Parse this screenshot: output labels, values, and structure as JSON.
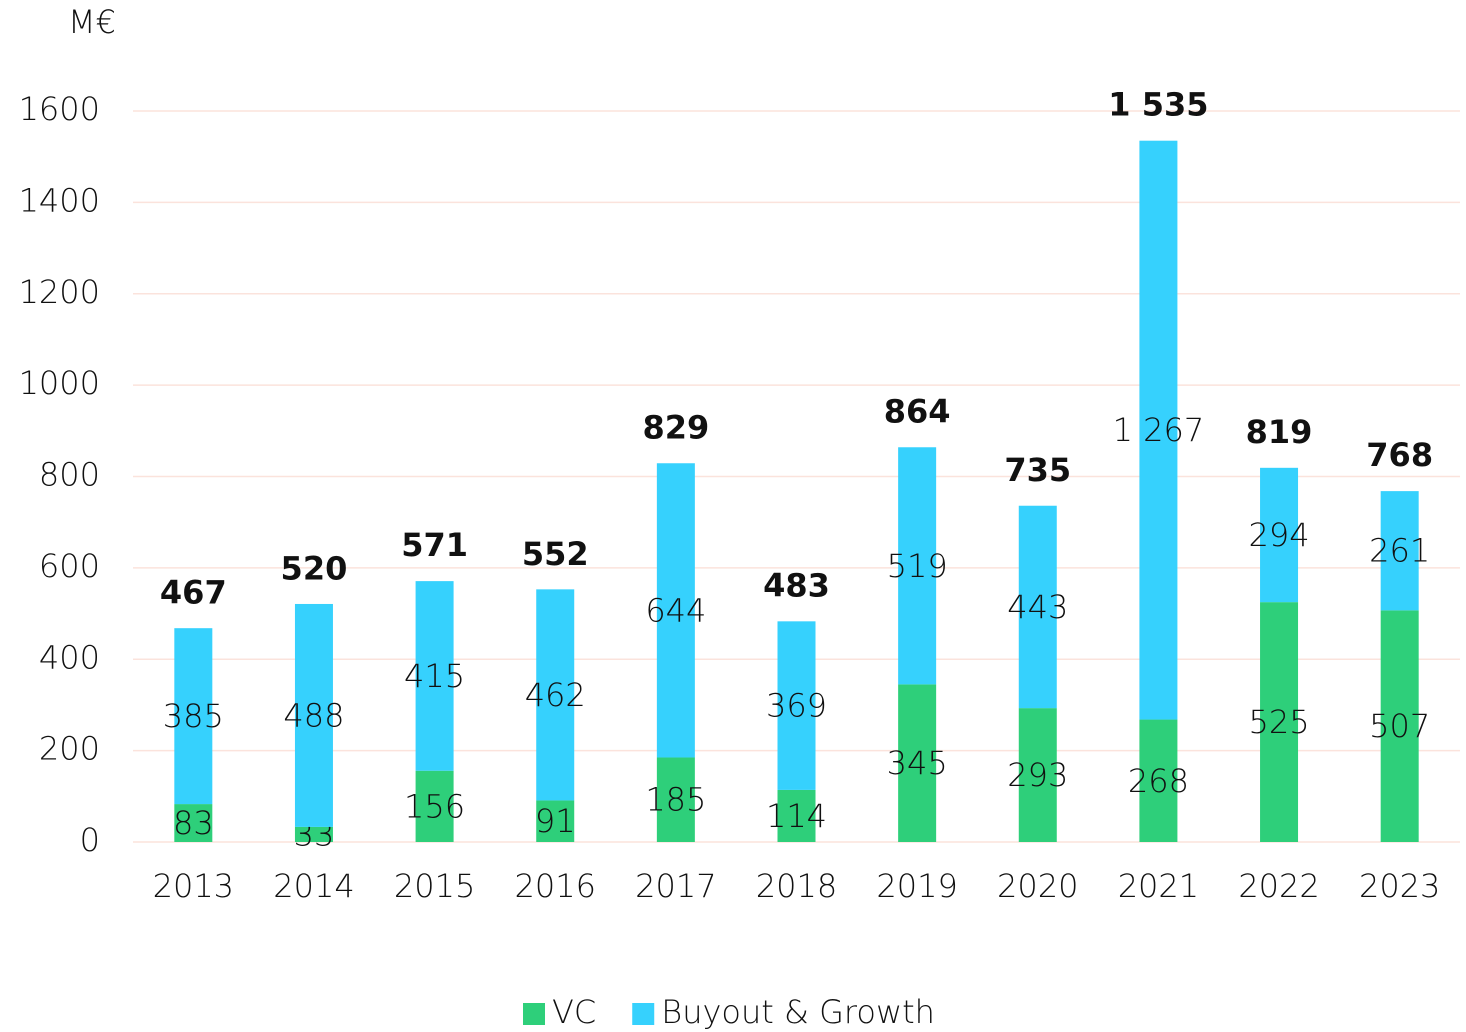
{
  "chart_data": {
    "type": "stacked-bar",
    "y_axis_label": "M€",
    "categories": [
      "2013",
      "2014",
      "2015",
      "2016",
      "2017",
      "2018",
      "2019",
      "2020",
      "2021",
      "2022",
      "2023"
    ],
    "series": [
      {
        "name": "VC",
        "color": "#2ecf7a",
        "values": [
          83,
          33,
          156,
          91,
          185,
          114,
          345,
          293,
          268,
          525,
          507
        ]
      },
      {
        "name": "Buyout & Growth",
        "color": "#36d1fd",
        "values": [
          385,
          488,
          415,
          462,
          644,
          369,
          519,
          443,
          1267,
          294,
          261
        ],
        "value_labels": [
          "385",
          "488",
          "415",
          "462",
          "644",
          "369",
          "519",
          "443",
          "1 267",
          "294",
          "261"
        ]
      }
    ],
    "totals": [
      467,
      520,
      571,
      552,
      829,
      483,
      864,
      735,
      1535,
      819,
      768
    ],
    "total_labels": [
      "467",
      "520",
      "571",
      "552",
      "829",
      "483",
      "864",
      "735",
      "1 535",
      "819",
      "768"
    ],
    "ylim": [
      0,
      1600
    ],
    "yticks": [
      0,
      200,
      400,
      600,
      800,
      1000,
      1200,
      1400,
      1600
    ],
    "grid": true
  }
}
